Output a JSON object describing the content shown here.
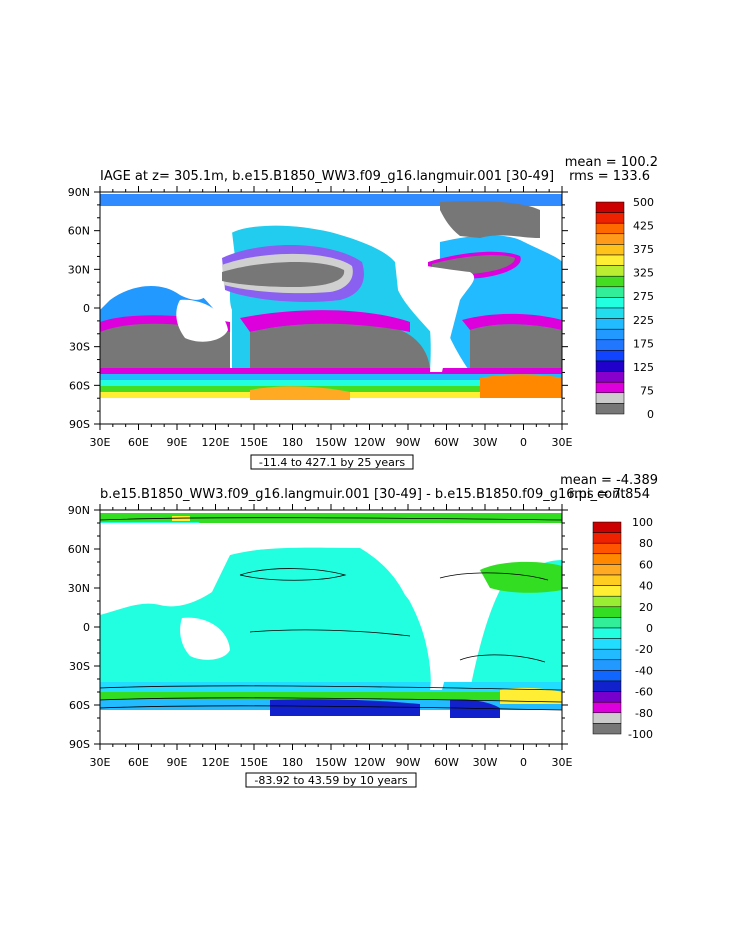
{
  "chart_data": [
    {
      "type": "heatmap",
      "title": "IAGE at z= 305.1m, b.e15.B1850_WW3.f09_g16.langmuir.001 [30-49]",
      "stats": {
        "mean": "mean = 100.2",
        "rms": "rms = 133.6"
      },
      "x_ticks": [
        "30E",
        "60E",
        "90E",
        "120E",
        "150E",
        "180",
        "150W",
        "120W",
        "90W",
        "60W",
        "30W",
        "0",
        "30E"
      ],
      "y_ticks": [
        "90N",
        "60N",
        "30N",
        "0",
        "30S",
        "60S",
        "90S"
      ],
      "contour_info": "-11.4 to 427.1 by 25 years",
      "colorbar": {
        "labels": [
          "500",
          "425",
          "375",
          "325",
          "275",
          "225",
          "175",
          "125",
          "75",
          "0"
        ],
        "colors": [
          "#cc0000",
          "#ee2200",
          "#ff6a00",
          "#ff9a1a",
          "#ffc21a",
          "#ffee33",
          "#bbee33",
          "#44dd22",
          "#33ee99",
          "#22ffe0",
          "#22ddee",
          "#22bbff",
          "#2299ff",
          "#2277ff",
          "#1144ff",
          "#2200cc",
          "#8800cc",
          "#dd00dd",
          "#cccccc",
          "#777777"
        ]
      }
    },
    {
      "type": "heatmap",
      "title": "b.e15.B1850_WW3.f09_g16.langmuir.001 [30-49] - b.e15.B1850.f09_g16.pi_cont",
      "stats": {
        "mean": "mean = -4.389",
        "rms": "rms = 7.854"
      },
      "x_ticks": [
        "30E",
        "60E",
        "90E",
        "120E",
        "150E",
        "180",
        "150W",
        "120W",
        "90W",
        "60W",
        "30W",
        "0",
        "30E"
      ],
      "y_ticks": [
        "90N",
        "60N",
        "30N",
        "0",
        "30S",
        "60S",
        "90S"
      ],
      "contour_info": "-83.92 to 43.59 by 10 years",
      "colorbar": {
        "labels": [
          "100",
          "80",
          "60",
          "40",
          "20",
          "0",
          "-20",
          "-40",
          "-60",
          "-80",
          "-100"
        ],
        "colors": [
          "#cc0000",
          "#ee2200",
          "#ff5500",
          "#ff8800",
          "#ffaa22",
          "#ffcc22",
          "#ffee33",
          "#99ee33",
          "#33dd22",
          "#33ee99",
          "#22ffe0",
          "#22ddff",
          "#22bbff",
          "#2299ff",
          "#1166ff",
          "#1122cc",
          "#7700cc",
          "#dd00dd",
          "#cccccc",
          "#777777"
        ]
      }
    }
  ]
}
